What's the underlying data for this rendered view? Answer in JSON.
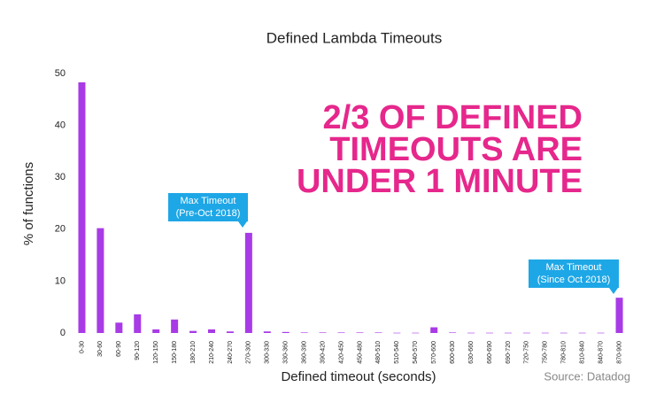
{
  "chart_data": {
    "type": "bar",
    "title": "Defined Lambda Timeouts",
    "x_label": "Defined timeout (seconds)",
    "y_label": "% of functions",
    "categories": [
      "0-30",
      "30-60",
      "60-90",
      "90-120",
      "120-150",
      "150-180",
      "180-210",
      "210-240",
      "240-270",
      "270-300",
      "300-330",
      "330-360",
      "360-390",
      "390-420",
      "420-450",
      "450-480",
      "480-510",
      "510-540",
      "540-570",
      "570-600",
      "600-630",
      "630-660",
      "660-690",
      "690-720",
      "720-750",
      "750-780",
      "780-810",
      "810-840",
      "840-870",
      "870-900"
    ],
    "values": [
      48.3,
      20.2,
      2,
      3.6,
      0.7,
      2.6,
      0.4,
      0.7,
      0.3,
      19.3,
      0.3,
      0.2,
      0.1,
      0.1,
      0.1,
      0.1,
      0.1,
      0.05,
      0.05,
      1.1,
      0.1,
      0.05,
      0.05,
      0.05,
      0.05,
      0.05,
      0.05,
      0.05,
      0.05,
      6.8
    ],
    "color": "#a83be6",
    "ylim": [
      0,
      50
    ],
    "yticks": [
      0,
      10,
      20,
      30,
      40,
      50
    ],
    "grid": false,
    "headline": [
      "2/3 OF DEFINED",
      "TIMEOUTS ARE",
      "UNDER 1 MINUTE"
    ],
    "callouts": [
      {
        "lines": [
          "Max Timeout",
          "(Pre-Oct 2018)"
        ]
      },
      {
        "lines": [
          "Max Timeout",
          "(Since Oct 2018)"
        ]
      }
    ],
    "source": "Source: Datadog"
  }
}
